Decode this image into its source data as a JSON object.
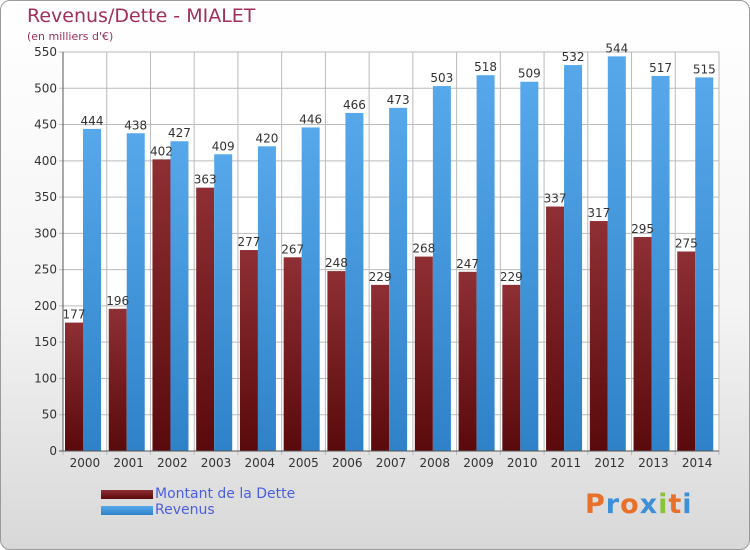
{
  "header": {
    "title": "Revenus/Dette - MIALET",
    "subtitle": "(en milliers d'€)"
  },
  "colors": {
    "debt": "#7a1f22",
    "revenue": "#3d94db",
    "grid": "#bbbbbb",
    "axis_text": "#333333"
  },
  "legend": {
    "placement": "bottom-left",
    "items": [
      {
        "label": "Montant de la Dette",
        "color": "#7a1f22"
      },
      {
        "label": "Revenus",
        "color": "#3d94db"
      }
    ]
  },
  "logo": {
    "text": "Proxiti",
    "letters": [
      "P",
      "r",
      "o",
      "x",
      "i",
      "t",
      "i"
    ],
    "colors": [
      "#e8702a",
      "#3c8fd8",
      "#e8702a",
      "#3c8fd8",
      "#8ac23c",
      "#e8702a",
      "#3c8fd8"
    ]
  },
  "chart_data": {
    "type": "bar",
    "title": "Revenus/Dette - MIALET",
    "subtitle": "(en milliers d'€)",
    "categories": [
      "2000",
      "2001",
      "2002",
      "2003",
      "2004",
      "2005",
      "2006",
      "2007",
      "2008",
      "2009",
      "2010",
      "2011",
      "2012",
      "2013",
      "2014"
    ],
    "series": [
      {
        "name": "Montant de la Dette",
        "values": [
          177,
          196,
          402,
          363,
          277,
          267,
          248,
          229,
          268,
          247,
          229,
          337,
          317,
          295,
          275
        ]
      },
      {
        "name": "Revenus",
        "values": [
          444,
          438,
          427,
          409,
          420,
          446,
          466,
          473,
          503,
          518,
          509,
          532,
          544,
          517,
          515
        ]
      }
    ],
    "ylim": [
      0,
      550
    ],
    "yticks": [
      0,
      50,
      100,
      150,
      200,
      250,
      300,
      350,
      400,
      450,
      500,
      550
    ],
    "grid": true,
    "legend_position": "bottom-left"
  }
}
